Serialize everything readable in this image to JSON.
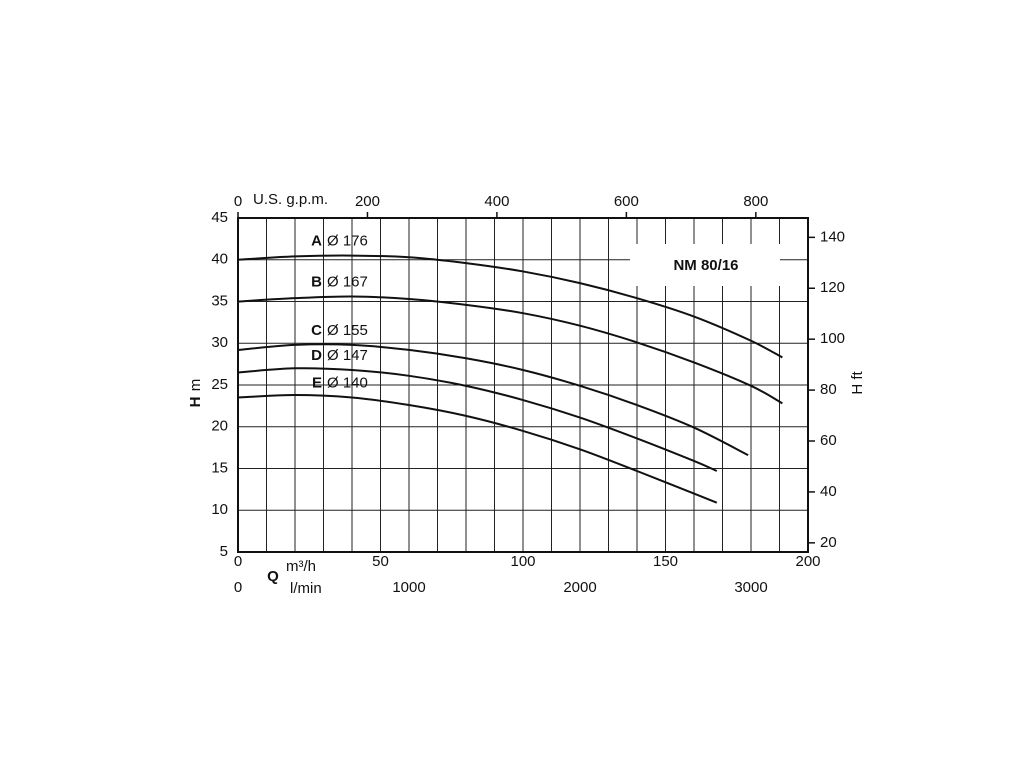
{
  "chart_data": {
    "type": "line",
    "title": "NM 80/16",
    "xlabel": "Q",
    "xunit": "m³/h",
    "ylabel": "H",
    "yunit": "m",
    "y2label": "H ft",
    "xlim": [
      0,
      200
    ],
    "xticks": [
      0,
      50,
      100,
      150,
      200
    ],
    "xgrid": [
      10,
      20,
      30,
      40,
      60,
      70,
      80,
      90,
      110,
      120,
      130,
      140,
      160,
      170,
      180,
      190
    ],
    "ylim": [
      5,
      45
    ],
    "yticks": [
      5,
      10,
      15,
      20,
      25,
      30,
      35,
      40,
      45
    ],
    "y2lim": [
      16.4,
      147.6
    ],
    "y2ticks": [
      20,
      40,
      60,
      80,
      100,
      120,
      140
    ],
    "top_axis": {
      "label": "U.S. g.p.m.",
      "lim": [
        0,
        880.6
      ],
      "ticks": [
        0,
        200,
        400,
        600,
        800
      ]
    },
    "bottom_axis2": {
      "label": "l/min",
      "lim": [
        0,
        3333.3
      ],
      "ticks": [
        0,
        1000,
        2000,
        3000
      ]
    },
    "grid": true,
    "color": "#111",
    "series": [
      {
        "name": "A",
        "diameter": "Ø 176",
        "x": [
          0,
          20,
          40,
          60,
          80,
          100,
          120,
          140,
          160,
          180,
          191
        ],
        "values": [
          40,
          40.4,
          40.5,
          40.3,
          39.6,
          38.6,
          37.2,
          35.4,
          33.2,
          30.3,
          28.3
        ]
      },
      {
        "name": "B",
        "diameter": "Ø 167",
        "x": [
          0,
          20,
          40,
          60,
          80,
          100,
          120,
          140,
          160,
          180,
          191
        ],
        "values": [
          35,
          35.4,
          35.6,
          35.3,
          34.6,
          33.6,
          32.1,
          30.1,
          27.7,
          24.9,
          22.8
        ]
      },
      {
        "name": "C",
        "diameter": "Ø 155",
        "x": [
          0,
          20,
          40,
          60,
          80,
          100,
          120,
          140,
          160,
          179
        ],
        "values": [
          29.2,
          29.8,
          29.8,
          29.2,
          28.2,
          26.8,
          24.9,
          22.6,
          19.9,
          16.6
        ]
      },
      {
        "name": "D",
        "diameter": "Ø 147",
        "x": [
          0,
          20,
          40,
          60,
          80,
          100,
          120,
          140,
          160,
          168
        ],
        "values": [
          26.5,
          27,
          26.8,
          26.1,
          24.9,
          23.2,
          21.1,
          18.6,
          15.9,
          14.7
        ]
      },
      {
        "name": "E",
        "diameter": "Ø 140",
        "x": [
          0,
          20,
          40,
          60,
          80,
          100,
          120,
          140,
          160,
          168
        ],
        "values": [
          23.5,
          23.8,
          23.5,
          22.6,
          21.3,
          19.5,
          17.3,
          14.7,
          12.0,
          10.9
        ]
      }
    ]
  }
}
